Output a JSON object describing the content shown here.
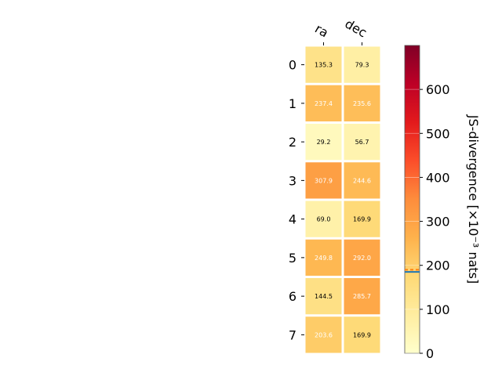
{
  "chart_data": {
    "type": "heatmap",
    "columns": [
      "ra",
      "dec"
    ],
    "rows": [
      "0",
      "1",
      "2",
      "3",
      "4",
      "5",
      "6",
      "7"
    ],
    "values": [
      [
        135.3,
        79.3
      ],
      [
        237.4,
        235.6
      ],
      [
        29.2,
        56.7
      ],
      [
        307.9,
        244.6
      ],
      [
        69.0,
        169.9
      ],
      [
        249.8,
        292.0
      ],
      [
        144.5,
        285.7
      ],
      [
        203.6,
        169.9
      ]
    ],
    "value_labels": [
      [
        "135.3",
        "79.3"
      ],
      [
        "237.4",
        "235.6"
      ],
      [
        "29.2",
        "56.7"
      ],
      [
        "307.9",
        "244.6"
      ],
      [
        "69.0",
        "169.9"
      ],
      [
        "249.8",
        "292.0"
      ],
      [
        "144.5",
        "285.7"
      ],
      [
        "203.6",
        "169.9"
      ]
    ],
    "colorbar": {
      "label": "JS-divergence [×10⁻³ nats]",
      "range": [
        0,
        700
      ],
      "ticks": [
        "0",
        "100",
        "200",
        "300",
        "400",
        "500",
        "600"
      ],
      "tick_values": [
        0,
        100,
        200,
        300,
        400,
        500,
        600
      ],
      "marker_values": [
        185,
        190
      ],
      "marker_colors": [
        "#1f77b4",
        "#ff7f0e"
      ],
      "colormap": "YlOrRd"
    }
  }
}
